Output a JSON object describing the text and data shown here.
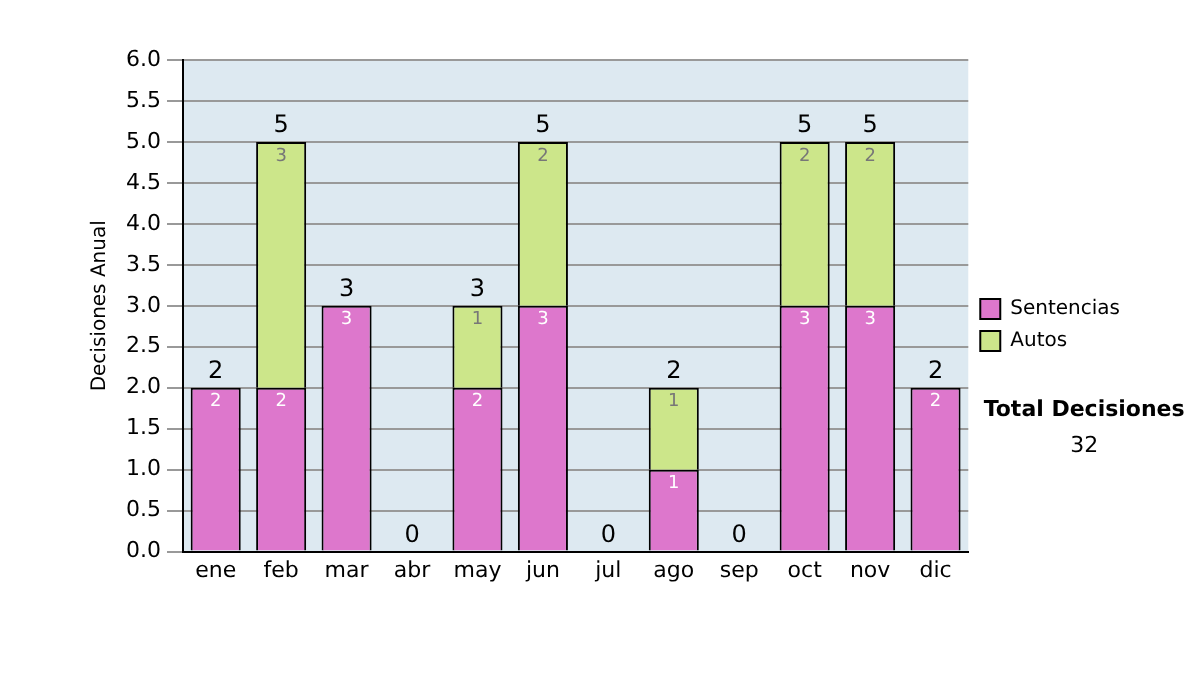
{
  "chart_data": {
    "type": "bar",
    "stacked": true,
    "ylabel": "Decisiones Anual",
    "categories": [
      "ene",
      "feb",
      "mar",
      "abr",
      "may",
      "jun",
      "jul",
      "ago",
      "sep",
      "oct",
      "nov",
      "dic"
    ],
    "series": [
      {
        "name": "Sentencias",
        "color": "#dd77cc",
        "values": [
          2,
          2,
          3,
          0,
          2,
          3,
          0,
          1,
          0,
          3,
          3,
          2
        ],
        "value_labels": [
          "2",
          "2",
          "3",
          null,
          "2",
          "3",
          null,
          "1",
          null,
          "3",
          "3",
          "2"
        ]
      },
      {
        "name": "Autos",
        "color": "#cce68a",
        "values": [
          0,
          3,
          0,
          0,
          1,
          2,
          0,
          1,
          0,
          2,
          2,
          0
        ],
        "value_labels": [
          null,
          "3",
          null,
          null,
          "1",
          "2",
          null,
          "1",
          null,
          "2",
          "2",
          null
        ]
      }
    ],
    "totals": [
      "2",
      "5",
      "3",
      "0",
      "3",
      "5",
      "0",
      "2",
      "0",
      "5",
      "5",
      "2"
    ],
    "ylim": [
      0,
      6
    ],
    "yticks": [
      {
        "value": 0,
        "label": "0.0"
      },
      {
        "value": 0.5,
        "label": "0.5"
      },
      {
        "value": 1,
        "label": "1.0"
      },
      {
        "value": 1.5,
        "label": "1.5"
      },
      {
        "value": 2,
        "label": "2.0"
      },
      {
        "value": 2.5,
        "label": "2.5"
      },
      {
        "value": 3,
        "label": "3.0"
      },
      {
        "value": 3.5,
        "label": "3.5"
      },
      {
        "value": 4,
        "label": "4.0"
      },
      {
        "value": 4.5,
        "label": "4.5"
      },
      {
        "value": 5,
        "label": "5.0"
      },
      {
        "value": 5.5,
        "label": "5.5"
      },
      {
        "value": 6,
        "label": "6.0"
      }
    ],
    "grid": "y",
    "legend": "right",
    "annotations": [
      "Total Decisiones",
      "32"
    ]
  }
}
